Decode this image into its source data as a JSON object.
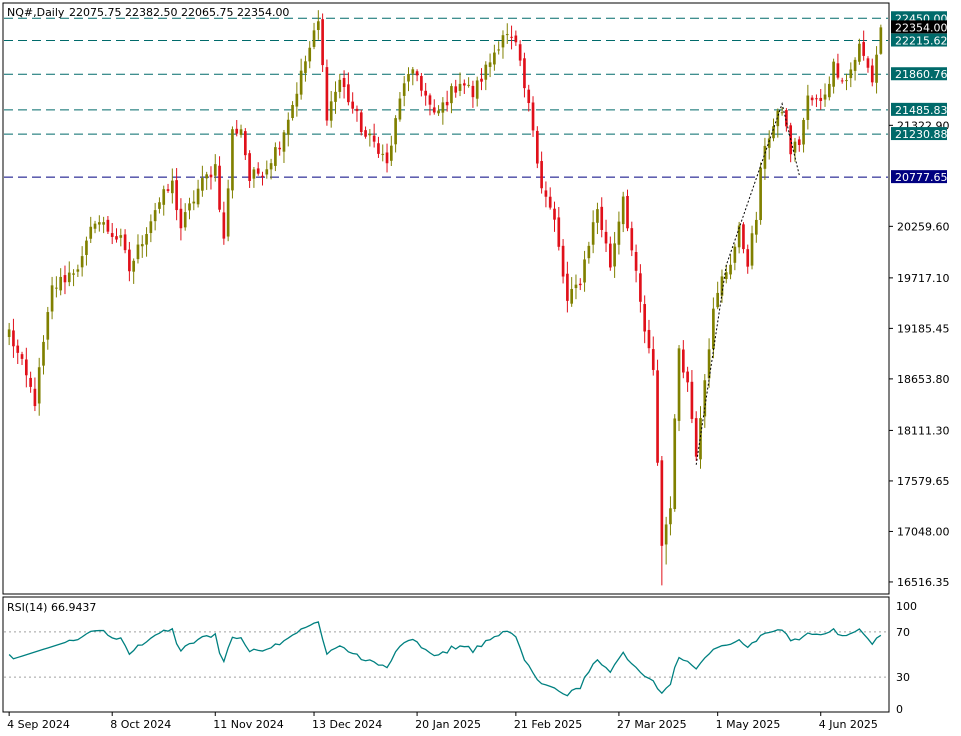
{
  "header": {
    "symbol": "NQ#,Daily",
    "ohlc": "22075.75 22382.50 22065.75 22354.00"
  },
  "rsi_panel": {
    "label": "RSI(14) 66.9437",
    "levels": [
      "100",
      "70",
      "30",
      "0"
    ]
  },
  "colors": {
    "bull": "#808000",
    "bear": "#e0101a",
    "level_line": "#006a6a",
    "support_line": "#000080",
    "level_label_bg": "#006a6a",
    "support_label_bg": "#000080",
    "price_label_bg": "#000000",
    "rsi_line": "#008080",
    "trend_dotted": "#000000"
  },
  "chart_data": [
    {
      "type": "candlestick",
      "title": "NQ#,Daily",
      "y_axis_ticks": [
        22450.0,
        22354.0,
        22215.62,
        21860.76,
        21485.83,
        21322.9,
        21230.88,
        20777.65,
        20259.6,
        19717.1,
        19185.45,
        18653.8,
        18111.3,
        17579.65,
        17048.0,
        16516.35
      ],
      "ylim": [
        16400,
        22600
      ],
      "x_tick_labels": [
        "4 Sep 2024",
        "8 Oct 2024",
        "11 Nov 2024",
        "13 Dec 2024",
        "20 Jan 2025",
        "21 Feb 2025",
        "27 Mar 2025",
        "1 May 2025",
        "4 Jun 2025"
      ],
      "horizontal_levels": [
        {
          "value": 22450.0,
          "label": "22450.00",
          "style": "dashed"
        },
        {
          "value": 22215.62,
          "label": "22215.62",
          "style": "dashed"
        },
        {
          "value": 21860.76,
          "label": "21860.76",
          "style": "dashed"
        },
        {
          "value": 21485.83,
          "label": "21485.83",
          "style": "dashed"
        },
        {
          "value": 21230.88,
          "label": "21230.88",
          "style": "dashed"
        },
        {
          "value": 20777.65,
          "label": "20777.65",
          "style": "dashed-support"
        }
      ],
      "current_price": {
        "value": 22354.0,
        "label": "22354.00"
      },
      "other_price_label": {
        "value": 21322.9,
        "label": "21322.90"
      },
      "anchors": [
        [
          0,
          19150
        ],
        [
          6,
          18420
        ],
        [
          10,
          19600
        ],
        [
          14,
          19760
        ],
        [
          17,
          19900
        ],
        [
          20,
          20350
        ],
        [
          26,
          20100
        ],
        [
          28,
          19800
        ],
        [
          34,
          20450
        ],
        [
          38,
          20700
        ],
        [
          40,
          20250
        ],
        [
          44,
          20650
        ],
        [
          48,
          20900
        ],
        [
          50,
          20100
        ],
        [
          52,
          21250
        ],
        [
          54,
          21300
        ],
        [
          56,
          20750
        ],
        [
          60,
          20900
        ],
        [
          63,
          21150
        ],
        [
          66,
          21550
        ],
        [
          69,
          22000
        ],
        [
          72,
          22400
        ],
        [
          74,
          21450
        ],
        [
          77,
          21800
        ],
        [
          80,
          21500
        ],
        [
          83,
          21200
        ],
        [
          86,
          21100
        ],
        [
          88,
          20900
        ],
        [
          92,
          21800
        ],
        [
          95,
          21850
        ],
        [
          99,
          21400
        ],
        [
          102,
          21600
        ],
        [
          105,
          21800
        ],
        [
          108,
          21650
        ],
        [
          112,
          22000
        ],
        [
          115,
          22300
        ],
        [
          118,
          22150
        ],
        [
          120,
          21700
        ],
        [
          122,
          21300
        ],
        [
          124,
          20700
        ],
        [
          127,
          20300
        ],
        [
          130,
          19450
        ],
        [
          133,
          19700
        ],
        [
          135,
          20100
        ],
        [
          137,
          20450
        ],
        [
          140,
          19850
        ],
        [
          143,
          20600
        ],
        [
          145,
          20000
        ],
        [
          148,
          19150
        ],
        [
          150,
          18700
        ],
        [
          152,
          16900
        ],
        [
          154,
          17350
        ],
        [
          156,
          19000
        ],
        [
          158,
          18600
        ],
        [
          160,
          17900
        ],
        [
          162,
          18700
        ],
        [
          164,
          19350
        ],
        [
          166,
          19700
        ],
        [
          168,
          19900
        ],
        [
          170,
          20200
        ],
        [
          172,
          19900
        ],
        [
          174,
          20350
        ],
        [
          175,
          20800
        ],
        [
          176,
          21150
        ],
        [
          178,
          21300
        ],
        [
          180,
          21500
        ],
        [
          182,
          21050
        ],
        [
          184,
          21150
        ],
        [
          186,
          21600
        ],
        [
          189,
          21550
        ],
        [
          192,
          21950
        ],
        [
          195,
          21800
        ],
        [
          198,
          22150
        ],
        [
          201,
          21800
        ],
        [
          203,
          22354
        ]
      ]
    },
    {
      "type": "line",
      "title": "RSI(14) 66.9437",
      "ylim": [
        0,
        100
      ],
      "levels": [
        70,
        30
      ],
      "last_value": 66.9437
    }
  ]
}
